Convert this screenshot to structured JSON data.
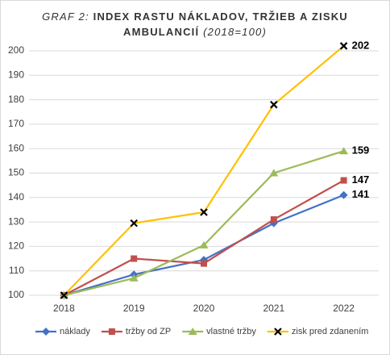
{
  "chart_data": {
    "type": "line",
    "title": [
      "GRAF 2:",
      "INDEX RASTU NÁKLADOV, TRŽIEB A ZISKU",
      "AMBULANCIÍ",
      "(2018=100)"
    ],
    "categories": [
      "2018",
      "2019",
      "2020",
      "2021",
      "2022"
    ],
    "series": [
      {
        "name": "náklady",
        "color": "#4472c4",
        "marker": "diamond",
        "values": [
          100,
          108.5,
          114.5,
          129.5,
          141
        ],
        "end_label": true
      },
      {
        "name": "tržby od ZP",
        "color": "#c0504d",
        "marker": "square",
        "values": [
          100,
          115,
          113,
          131,
          147
        ],
        "end_label": true
      },
      {
        "name": "vlastné tržby",
        "color": "#9bbb59",
        "marker": "triangle",
        "values": [
          100,
          107,
          120.5,
          150,
          159
        ],
        "end_label": true
      },
      {
        "name": "zisk pred zdanením",
        "color": "#ffc000",
        "marker": "cross",
        "values": [
          100,
          129.5,
          134,
          178,
          202
        ],
        "end_label": true
      }
    ],
    "ylim": [
      100,
      200
    ],
    "yticks": [
      100,
      110,
      120,
      130,
      140,
      150,
      160,
      170,
      180,
      190,
      200
    ],
    "grid": true,
    "legend": "bottom"
  }
}
